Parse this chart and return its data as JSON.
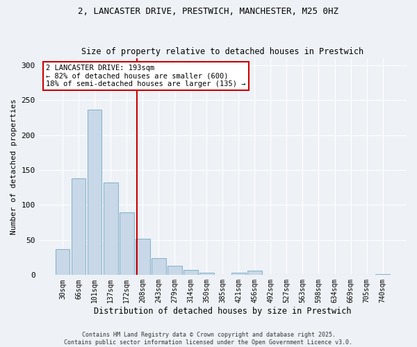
{
  "title_line1": "2, LANCASTER DRIVE, PRESTWICH, MANCHESTER, M25 0HZ",
  "title_line2": "Size of property relative to detached houses in Prestwich",
  "xlabel": "Distribution of detached houses by size in Prestwich",
  "ylabel": "Number of detached properties",
  "bar_labels": [
    "30sqm",
    "66sqm",
    "101sqm",
    "137sqm",
    "172sqm",
    "208sqm",
    "243sqm",
    "279sqm",
    "314sqm",
    "350sqm",
    "385sqm",
    "421sqm",
    "456sqm",
    "492sqm",
    "527sqm",
    "563sqm",
    "598sqm",
    "634sqm",
    "669sqm",
    "705sqm",
    "740sqm"
  ],
  "bar_values": [
    37,
    138,
    236,
    132,
    90,
    52,
    24,
    13,
    7,
    3,
    0,
    3,
    6,
    0,
    0,
    0,
    0,
    0,
    0,
    0,
    1
  ],
  "bar_color": "#c8d8e8",
  "bar_edge_color": "#8ab4cc",
  "annotation_text": "2 LANCASTER DRIVE: 193sqm\n← 82% of detached houses are smaller (600)\n18% of semi-detached houses are larger (135) →",
  "vline_x_index": 4.65,
  "vline_color": "#cc0000",
  "annotation_box_color": "#cc0000",
  "background_color": "#eef2f7",
  "footer_text": "Contains HM Land Registry data © Crown copyright and database right 2025.\nContains public sector information licensed under the Open Government Licence v3.0.",
  "ylim": [
    0,
    310
  ],
  "yticks": [
    0,
    50,
    100,
    150,
    200,
    250,
    300
  ]
}
